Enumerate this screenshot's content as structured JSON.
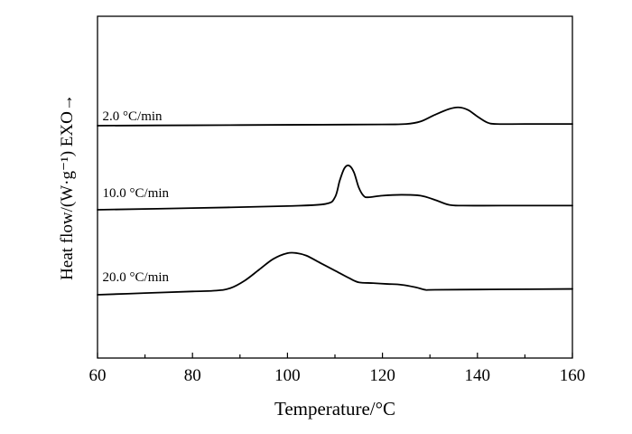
{
  "chart_data": {
    "type": "line",
    "xlabel": "Temperature/°C",
    "ylabel": "Heat flow/(W·g⁻¹) EXO→",
    "xlim": [
      60,
      160
    ],
    "xticks": [
      60,
      80,
      100,
      120,
      140,
      160
    ],
    "x_minor_ticks": [
      70,
      90,
      110,
      130,
      150
    ],
    "yticks_labeled": false,
    "grid": false,
    "legend": "none",
    "series": [
      {
        "name": "2.0 °C/min",
        "label_at": [
          66,
          0.62
        ],
        "points": [
          [
            60,
            0.0
          ],
          [
            80,
            0.005
          ],
          [
            100,
            0.01
          ],
          [
            120,
            0.015
          ],
          [
            125,
            0.02
          ],
          [
            128,
            0.05
          ],
          [
            131,
            0.13
          ],
          [
            134,
            0.2
          ],
          [
            136,
            0.22
          ],
          [
            138,
            0.19
          ],
          [
            140,
            0.11
          ],
          [
            142,
            0.04
          ],
          [
            144,
            0.02
          ],
          [
            150,
            0.02
          ],
          [
            160,
            0.02
          ]
        ]
      },
      {
        "name": "10.0 °C/min",
        "label_at": [
          66,
          0.14
        ],
        "points": [
          [
            60,
            0.0
          ],
          [
            80,
            0.02
          ],
          [
            100,
            0.045
          ],
          [
            108,
            0.07
          ],
          [
            110,
            0.15
          ],
          [
            111,
            0.35
          ],
          [
            112,
            0.5
          ],
          [
            113,
            0.53
          ],
          [
            114,
            0.45
          ],
          [
            115,
            0.27
          ],
          [
            116,
            0.17
          ],
          [
            117,
            0.15
          ],
          [
            120,
            0.17
          ],
          [
            124,
            0.18
          ],
          [
            128,
            0.17
          ],
          [
            131,
            0.12
          ],
          [
            134,
            0.06
          ],
          [
            137,
            0.05
          ],
          [
            145,
            0.05
          ],
          [
            160,
            0.05
          ]
        ]
      },
      {
        "name": "20.0 °C/min",
        "label_at": [
          66,
          0.12
        ],
        "points": [
          [
            60,
            0.0
          ],
          [
            70,
            0.02
          ],
          [
            80,
            0.04
          ],
          [
            85,
            0.05
          ],
          [
            88,
            0.08
          ],
          [
            91,
            0.17
          ],
          [
            94,
            0.3
          ],
          [
            97,
            0.43
          ],
          [
            100,
            0.5
          ],
          [
            102,
            0.5
          ],
          [
            104,
            0.47
          ],
          [
            107,
            0.38
          ],
          [
            110,
            0.29
          ],
          [
            113,
            0.2
          ],
          [
            115,
            0.15
          ],
          [
            118,
            0.14
          ],
          [
            121,
            0.13
          ],
          [
            124,
            0.12
          ],
          [
            127,
            0.09
          ],
          [
            129,
            0.06
          ],
          [
            131,
            0.06
          ],
          [
            145,
            0.065
          ],
          [
            160,
            0.07
          ]
        ]
      }
    ]
  }
}
